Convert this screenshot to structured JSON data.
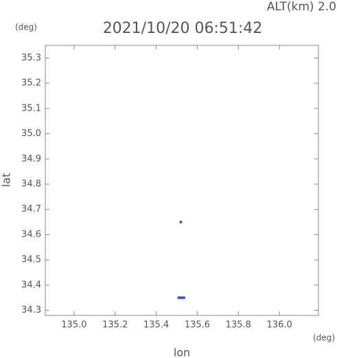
{
  "chart_data": {
    "type": "scatter",
    "title": "2021/10/20 06:51:42",
    "subtitle": "ALT(km) 2.0",
    "x_label": "lon",
    "y_label": "lat",
    "x_unit": "(deg)",
    "y_unit": "(deg)",
    "x": [
      135.52,
      135.51,
      135.52,
      135.53,
      135.535
    ],
    "values": [
      34.65,
      34.35,
      34.35,
      34.35,
      34.35
    ],
    "color": "#3355dd",
    "xlim": [
      134.86,
      136.19
    ],
    "xticks": [
      {
        "value": 135.0,
        "label": "135.0"
      },
      135.2,
      135.4,
      135.6,
      135.8,
      {
        "value": 136.0,
        "label": "136.0"
      }
    ],
    "ylim": [
      34.28,
      35.35
    ],
    "yticks": [
      34.3,
      34.4,
      34.5,
      34.6,
      34.7,
      34.8,
      34.9,
      {
        "value": 35.0,
        "label": "35.0"
      },
      35.1,
      35.2,
      35.3
    ]
  }
}
